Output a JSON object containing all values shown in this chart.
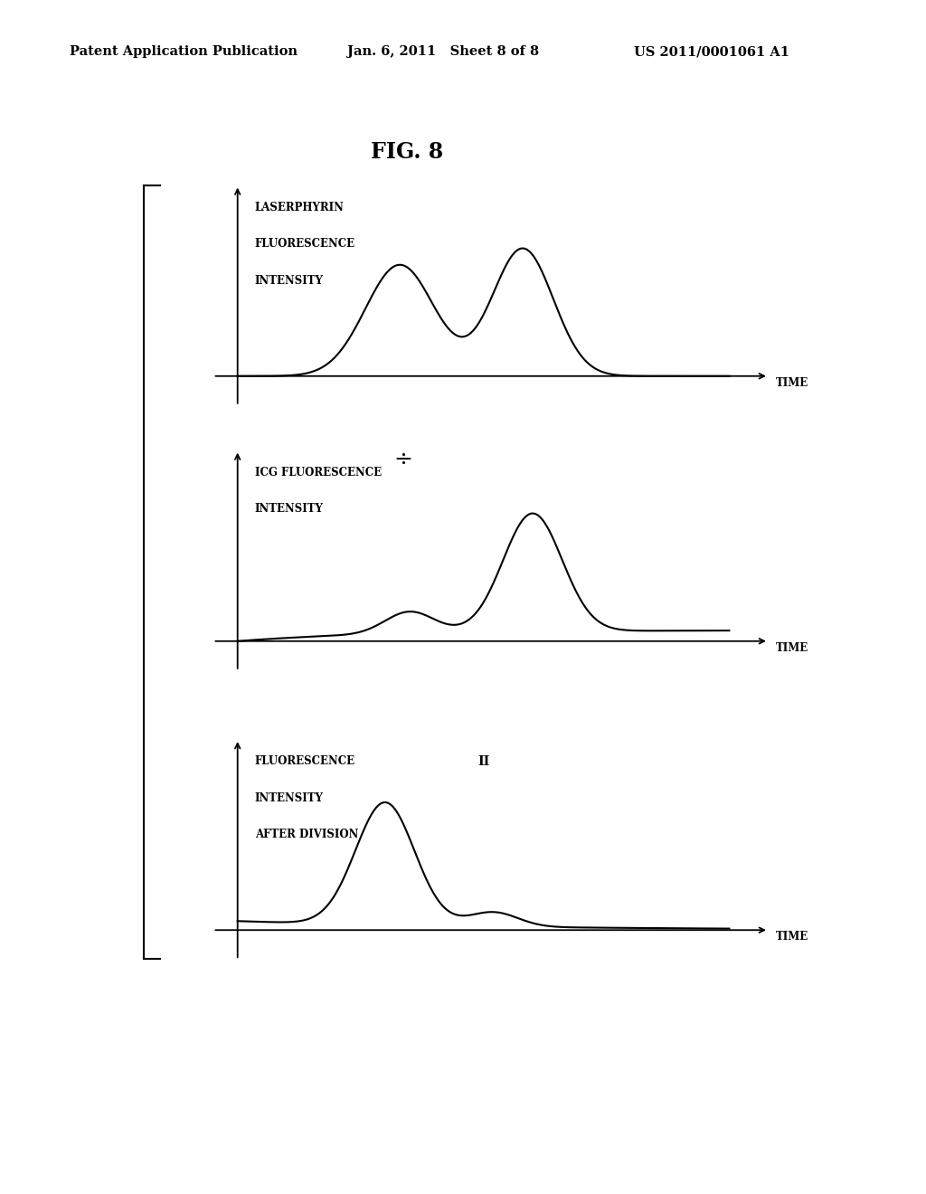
{
  "fig_label": "FIG. 8",
  "header_left": "Patent Application Publication",
  "header_mid": "Jan. 6, 2011   Sheet 8 of 8",
  "header_right": "US 2011/0001061 A1",
  "plot1_ylabel_line1": "LASERPHYRIN",
  "plot1_ylabel_line2": "FLUORESCENCE",
  "plot1_ylabel_line3": "INTENSITY",
  "plot2_ylabel_line1": "ICG FLUORESCENCE",
  "plot2_ylabel_line2": "INTENSITY",
  "plot3_ylabel_line1": "FLUORESCENCE",
  "plot3_ylabel_line2": "INTENSITY",
  "plot3_ylabel_line3": "AFTER DIVISION",
  "xlabel": "TIME",
  "divide_symbol": "÷",
  "result_symbol": "II",
  "background_color": "#ffffff",
  "line_color": "#000000"
}
